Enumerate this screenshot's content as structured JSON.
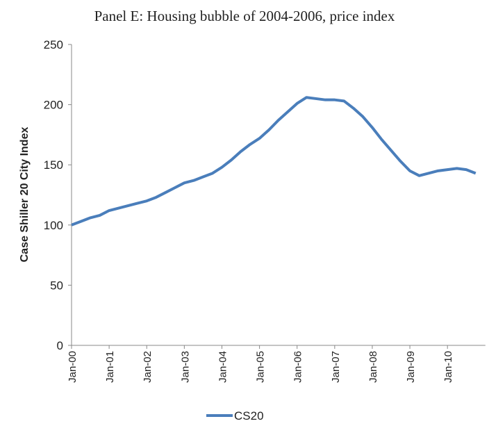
{
  "chart_data": {
    "type": "line",
    "title": "Panel E: Housing bubble of 2004-2006, price index",
    "ylabel": "Case Shiller 20 City Index",
    "categories": [
      "Jan-00",
      null,
      null,
      null,
      "Jan-01",
      null,
      null,
      null,
      "Jan-02",
      null,
      null,
      null,
      "Jan-03",
      null,
      null,
      null,
      "Jan-04",
      null,
      null,
      null,
      "Jan-05",
      null,
      null,
      null,
      "Jan-06",
      null,
      null,
      null,
      "Jan-07",
      null,
      null,
      null,
      "Jan-08",
      null,
      null,
      null,
      "Jan-09",
      null,
      null,
      null,
      "Jan-10",
      null,
      null,
      null
    ],
    "series": [
      {
        "name": "CS20",
        "color": "#4a7ebb",
        "values": [
          100,
          103,
          106,
          108,
          112,
          114,
          116,
          118,
          120,
          123,
          127,
          131,
          135,
          137,
          140,
          143,
          148,
          154,
          161,
          167,
          172,
          179,
          187,
          194,
          201,
          206,
          205,
          204,
          204,
          203,
          197,
          190,
          181,
          171,
          162,
          153,
          145,
          141,
          143,
          145,
          146,
          147,
          146,
          143
        ]
      }
    ],
    "ylim": [
      0,
      250
    ],
    "yticks": [
      0,
      50,
      100,
      150,
      200,
      250
    ],
    "grid": false,
    "legend": "bottom"
  }
}
